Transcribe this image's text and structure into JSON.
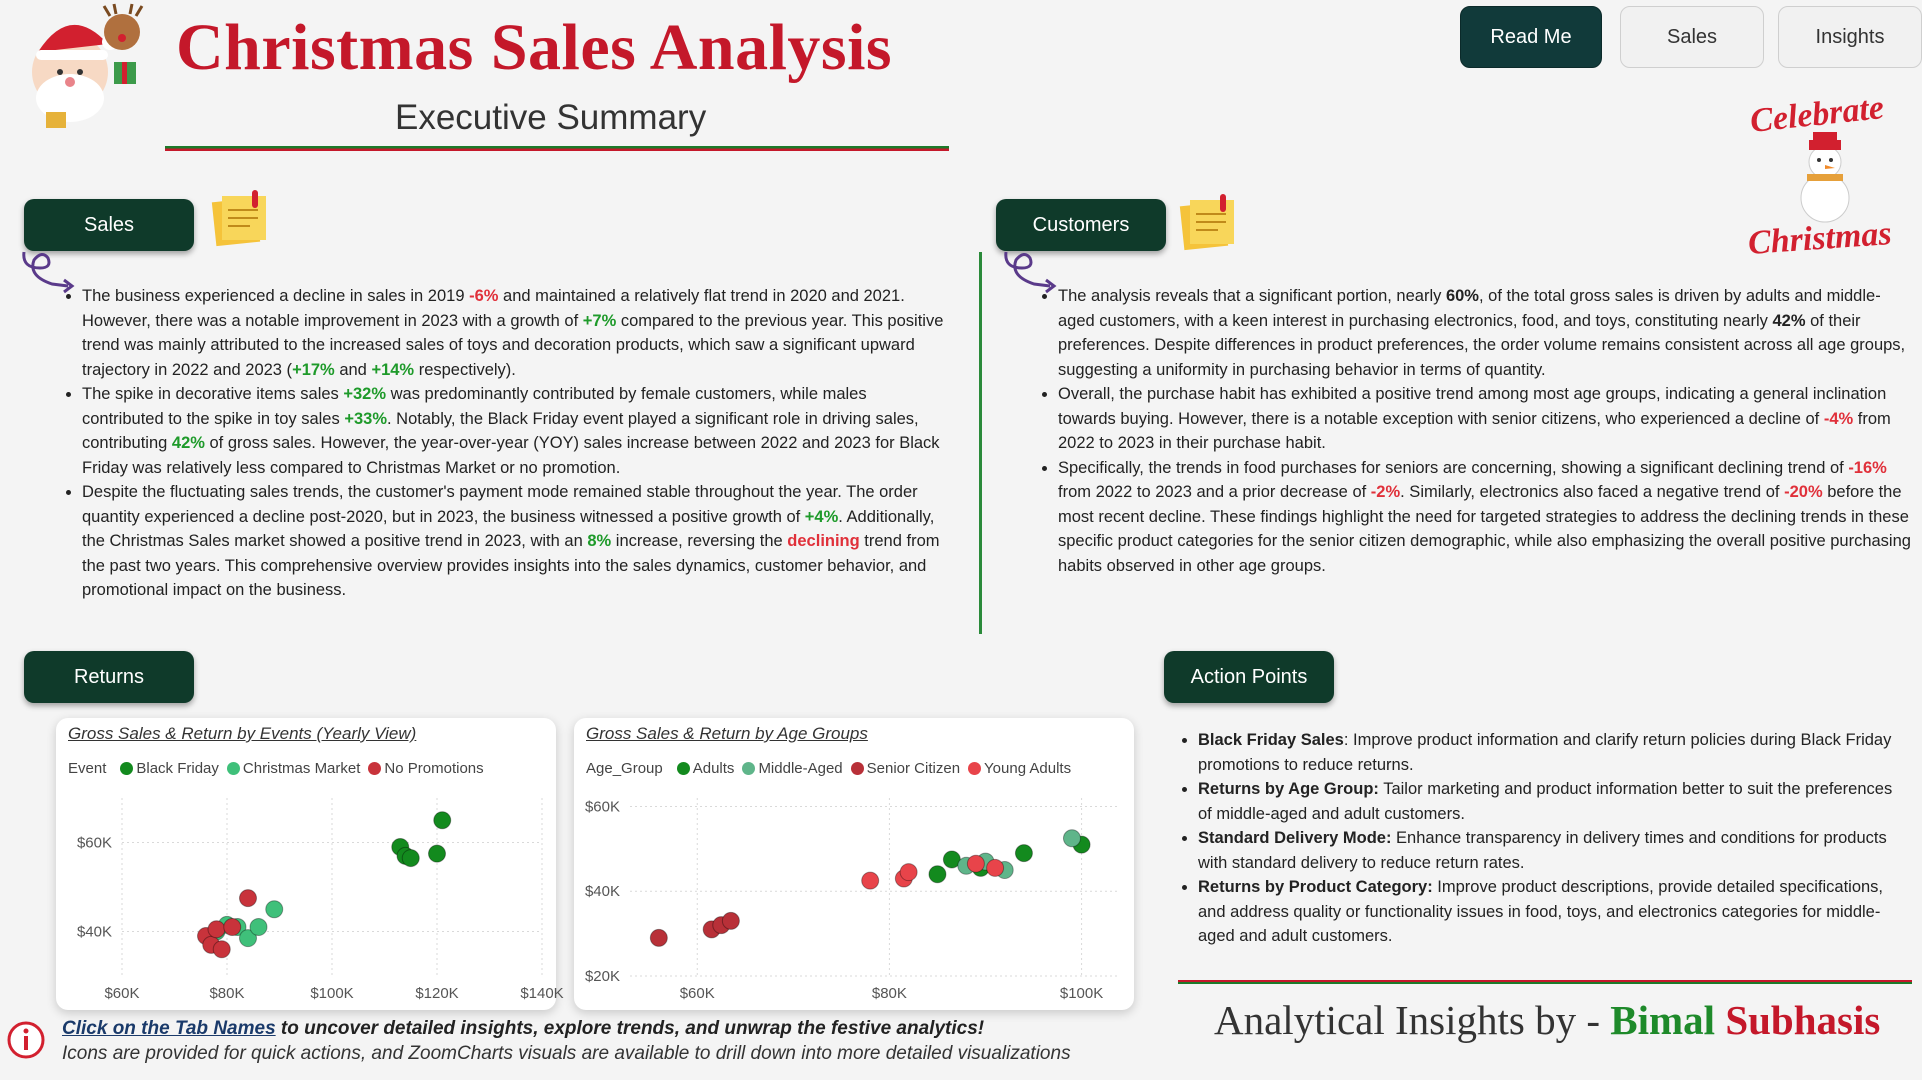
{
  "header": {
    "title": "Christmas Sales Analysis",
    "subtitle": "Executive Summary"
  },
  "nav": {
    "read_me": "Read Me",
    "sales": "Sales",
    "insights": "Insights"
  },
  "badge": {
    "line1": "Celebrate",
    "line2": "Christmas"
  },
  "sections": {
    "sales": {
      "label": "Sales",
      "bullets": [
        [
          {
            "t": "The business experienced a decline in sales in 2019 "
          },
          {
            "t": "-6%",
            "c": "r"
          },
          {
            "t": " and maintained a relatively flat trend in 2020 and 2021. However, there was a notable improvement in 2023 with a growth of "
          },
          {
            "t": "+7%",
            "c": "g"
          },
          {
            "t": " compared to the previous year. This positive trend was mainly attributed to the increased sales of toys and decoration products, which saw a significant upward trajectory in 2022 and 2023 ("
          },
          {
            "t": "+17%",
            "c": "g"
          },
          {
            "t": " and "
          },
          {
            "t": "+14%",
            "c": "g"
          },
          {
            "t": " respectively)."
          }
        ],
        [
          {
            "t": "The spike in decorative items sales "
          },
          {
            "t": "+32%",
            "c": "g"
          },
          {
            "t": " was predominantly contributed by female customers, while males contributed to the spike in toy sales "
          },
          {
            "t": "+33%",
            "c": "g"
          },
          {
            "t": ". Notably, the Black Friday event played a significant role in driving sales, contributing "
          },
          {
            "t": "42%",
            "c": "g"
          },
          {
            "t": " of gross sales. However, the year-over-year (YOY) sales increase between 2022 and 2023 for Black Friday was relatively less compared to Christmas Market or no promotion."
          }
        ],
        [
          {
            "t": "Despite the fluctuating sales trends, the customer's payment mode remained stable throughout the year. The order quantity experienced a decline post-2020, but in 2023, the business witnessed a positive growth of "
          },
          {
            "t": "+4%",
            "c": "g"
          },
          {
            "t": ". Additionally, the Christmas Sales market showed a positive trend in 2023, with an "
          },
          {
            "t": "8%",
            "c": "g"
          },
          {
            "t": " increase, reversing the "
          },
          {
            "t": "declining",
            "c": "r"
          },
          {
            "t": " trend from the past two years. This comprehensive overview provides insights into the sales dynamics, customer behavior, and promotional impact on the business."
          }
        ]
      ]
    },
    "customers": {
      "label": "Customers",
      "bullets": [
        [
          {
            "t": "The analysis reveals that a significant portion, nearly "
          },
          {
            "t": "60%",
            "c": "b"
          },
          {
            "t": ", of the total gross sales is driven by adults and middle-aged customers, with a keen interest in purchasing electronics, food, and toys, constituting nearly "
          },
          {
            "t": "42%",
            "c": "b"
          },
          {
            "t": " of their preferences. Despite differences in product preferences, the order volume remains consistent across all age groups, suggesting a uniformity in purchasing behavior in terms of quantity."
          }
        ],
        [
          {
            "t": "Overall, the purchase habit has exhibited a positive trend among most age groups, indicating a general inclination towards buying. However, there is a notable exception with senior citizens, who experienced a decline of "
          },
          {
            "t": "-4%",
            "c": "r"
          },
          {
            "t": " from 2022 to 2023 in their purchase habit."
          }
        ],
        [
          {
            "t": "Specifically, the trends in food purchases for seniors are concerning, showing a significant declining trend of "
          },
          {
            "t": "-16%",
            "c": "r"
          },
          {
            "t": " from 2022 to 2023 and a prior decrease of "
          },
          {
            "t": "-2%",
            "c": "r"
          },
          {
            "t": ". Similarly, electronics also faced a negative trend of "
          },
          {
            "t": "-20%",
            "c": "r"
          },
          {
            "t": " before the most recent decline. These findings highlight the need for targeted strategies to address the declining trends in these specific product categories for the senior citizen demographic, while also emphasizing the overall positive purchasing habits observed in other age groups."
          }
        ]
      ]
    },
    "returns": {
      "label": "Returns"
    },
    "action_points": {
      "label": "Action Points",
      "bullets": [
        [
          {
            "t": "Black Friday Sales",
            "c": "b"
          },
          {
            "t": ": Improve product information and clarify return policies during Black Friday promotions to reduce returns."
          }
        ],
        [
          {
            "t": "Returns by Age Group:",
            "c": "b"
          },
          {
            "t": " Tailor marketing and product information better to suit the preferences of middle-aged and adult customers."
          }
        ],
        [
          {
            "t": "Standard Delivery Mode:",
            "c": "b"
          },
          {
            "t": " Enhance transparency in delivery times and conditions for products with standard delivery to reduce return rates."
          }
        ],
        [
          {
            "t": "Returns by Product Category:",
            "c": "b"
          },
          {
            "t": " Improve product descriptions, provide detailed specifications, and address quality or functionality issues in food, toys, and electronics categories for middle-aged and adult customers."
          }
        ]
      ]
    }
  },
  "chart_data": [
    {
      "type": "scatter",
      "title": "Gross Sales & Return by Events (Yearly View)",
      "legend_title": "Event",
      "legend_position": "top-left",
      "xlim": [
        60000,
        140000
      ],
      "ylim": [
        30000,
        70000
      ],
      "x_ticks": [
        60000,
        80000,
        100000,
        120000,
        140000
      ],
      "x_tick_labels": [
        "$60K",
        "$80K",
        "$100K",
        "$120K",
        "$140K"
      ],
      "y_ticks": [
        40000,
        60000
      ],
      "y_tick_labels": [
        "$40K",
        "$60K"
      ],
      "grid": true,
      "series": [
        {
          "name": "Black Friday",
          "color": "#138a1e",
          "points": [
            [
              113000,
              59000
            ],
            [
              114000,
              57000
            ],
            [
              115000,
              56500
            ],
            [
              120000,
              57500
            ],
            [
              121000,
              65000
            ]
          ]
        },
        {
          "name": "Christmas Market",
          "color": "#3fc07a",
          "points": [
            [
              78000,
              40000
            ],
            [
              80000,
              41500
            ],
            [
              82000,
              41000
            ],
            [
              84000,
              38500
            ],
            [
              86000,
              41000
            ],
            [
              89000,
              45000
            ]
          ]
        },
        {
          "name": "No Promotions",
          "color": "#c8333b",
          "points": [
            [
              76000,
              39000
            ],
            [
              77000,
              37000
            ],
            [
              78000,
              40500
            ],
            [
              79000,
              36000
            ],
            [
              81000,
              41000
            ],
            [
              84000,
              47500
            ]
          ]
        }
      ]
    },
    {
      "type": "scatter",
      "title": "Gross Sales & Return by Age Groups",
      "legend_title": "Age_Group",
      "legend_position": "top-left",
      "xlim": [
        53000,
        104000
      ],
      "ylim": [
        20000,
        62000
      ],
      "x_ticks": [
        60000,
        80000,
        100000
      ],
      "x_tick_labels": [
        "$60K",
        "$80K",
        "$100K"
      ],
      "y_ticks": [
        20000,
        40000,
        60000
      ],
      "y_tick_labels": [
        "$20K",
        "$40K",
        "$60K"
      ],
      "grid": true,
      "series": [
        {
          "name": "Adults",
          "color": "#138a1e",
          "points": [
            [
              85000,
              44000
            ],
            [
              86500,
              47500
            ],
            [
              89500,
              45500
            ],
            [
              94000,
              49000
            ],
            [
              100000,
              51000
            ]
          ]
        },
        {
          "name": "Middle-Aged",
          "color": "#5fb58a",
          "points": [
            [
              88000,
              46000
            ],
            [
              90000,
              47000
            ],
            [
              92000,
              45000
            ],
            [
              99000,
              52500
            ]
          ]
        },
        {
          "name": "Senior Citizen",
          "color": "#b83038",
          "points": [
            [
              56000,
              29000
            ],
            [
              61500,
              31000
            ],
            [
              62500,
              32000
            ],
            [
              63500,
              33000
            ]
          ]
        },
        {
          "name": "Young Adults",
          "color": "#e8444a",
          "points": [
            [
              78000,
              42500
            ],
            [
              81500,
              43000
            ],
            [
              82000,
              44500
            ],
            [
              89000,
              46500
            ],
            [
              91000,
              45500
            ]
          ]
        }
      ]
    }
  ],
  "footer": {
    "link_text": "Click on the Tab Names",
    "line1_rest": " to uncover detailed insights, explore trends, and unwrap the festive analytics!",
    "line2": "Icons are provided for quick actions, and ZoomCharts visuals are available to drill down into more detailed visualizations",
    "byline_prefix": "Analytical Insights by - ",
    "byline_first": "Bimal",
    "byline_last": "Subhasis"
  },
  "icons": {
    "mascot": "santa-reindeer-icon",
    "notes": "sticky-notes-icon",
    "hook": "curved-arrow-icon",
    "info": "info-icon",
    "snowman": "snowman-icon"
  },
  "colors": {
    "brand_red": "#c4182a",
    "brand_green": "#1e9a2a",
    "button_dark": "#0f3a2a"
  }
}
